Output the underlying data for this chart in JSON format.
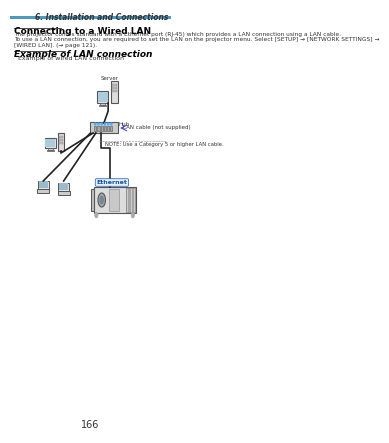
{
  "page_number": "166",
  "header_text": "6. Installation and Connections",
  "header_bar_color": "#4a9ac4",
  "background_color": "#ffffff",
  "title1": "Connecting to a Wired LAN",
  "body1": "The projector comes standard with a Ethernet port (RJ-45) which provides a LAN connection using a LAN cable.\nTo use a LAN connection, you are required to set the LAN on the projector menu. Select [SETUP] → [NETWORK SETTINGS] →\n[WIRED LAN]. (→ page 121).",
  "title2": "Example of LAN connection",
  "subtitle2": "Example of wired LAN connection",
  "label_server": "Server",
  "label_hub": "Hub",
  "label_lan_cable": "LAN cable (not supplied)",
  "label_note": "NOTE: Use a Category 5 or higher LAN cable.",
  "label_ethernet": "Ethernet",
  "diagram_bg": "#f5f5f5"
}
